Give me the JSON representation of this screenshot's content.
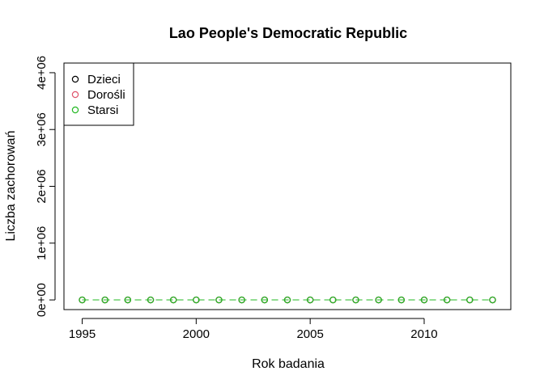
{
  "chart_data": {
    "type": "scatter",
    "title": "Lao People's Democratic Republic",
    "xlabel": "Rok badania",
    "ylabel": "Liczba zachorowań",
    "xlim": [
      1994.2,
      2013.8
    ],
    "ylim": [
      -170000,
      4170000
    ],
    "x_ticks": [
      1995,
      2000,
      2005,
      2010
    ],
    "x_tick_labels": [
      "1995",
      "2000",
      "2005",
      "2010"
    ],
    "y_ticks": [
      0,
      1000000,
      2000000,
      3000000,
      4000000
    ],
    "y_tick_labels": [
      "0e+00",
      "1e+06",
      "2e+06",
      "3e+06",
      "4e+06"
    ],
    "grid": false,
    "legend_position": "top-left",
    "x": [
      1995,
      1996,
      1997,
      1998,
      1999,
      2000,
      2001,
      2002,
      2003,
      2004,
      2005,
      2006,
      2007,
      2008,
      2009,
      2010,
      2011,
      2012,
      2013
    ],
    "series": [
      {
        "name": "Dzieci",
        "color": "#000000",
        "values": [
          0,
          0,
          0,
          0,
          0,
          0,
          0,
          0,
          0,
          0,
          0,
          0,
          0,
          0,
          0,
          0,
          0,
          0,
          0
        ]
      },
      {
        "name": "Dorośli",
        "color": "#DF536B",
        "values": [
          0,
          0,
          0,
          0,
          0,
          0,
          0,
          0,
          0,
          0,
          0,
          0,
          0,
          0,
          0,
          0,
          0,
          0,
          0
        ]
      },
      {
        "name": "Starsi",
        "color": "#22B822",
        "values": [
          0,
          0,
          0,
          0,
          0,
          0,
          0,
          0,
          0,
          0,
          0,
          0,
          0,
          0,
          0,
          0,
          0,
          0,
          0
        ]
      }
    ]
  }
}
